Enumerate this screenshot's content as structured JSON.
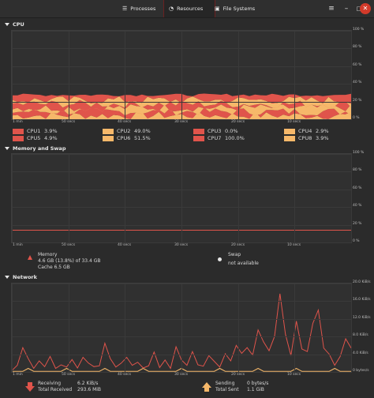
{
  "header": {
    "tabs": [
      {
        "label": "Processes"
      },
      {
        "label": "Resources"
      },
      {
        "label": "File Systems"
      }
    ],
    "active_tab": "Resources"
  },
  "cpu": {
    "title": "CPU",
    "yticks": [
      "100 %",
      "80 %",
      "60 %",
      "40 %",
      "20 %",
      "0 %"
    ],
    "xticks": [
      "1 min",
      "50 secs",
      "40 secs",
      "30 secs",
      "20 secs",
      "10 secs"
    ],
    "legend": [
      {
        "name": "CPU1",
        "value": "3.9%",
        "color": "#e0544b"
      },
      {
        "name": "CPU2",
        "value": "49.0%",
        "color": "#f6b86a"
      },
      {
        "name": "CPU3",
        "value": "0.0%",
        "color": "#e0544b"
      },
      {
        "name": "CPU4",
        "value": "2.9%",
        "color": "#f6b86a"
      },
      {
        "name": "CPU5",
        "value": "4.9%",
        "color": "#e0544b"
      },
      {
        "name": "CPU6",
        "value": "51.5%",
        "color": "#f6b86a"
      },
      {
        "name": "CPU7",
        "value": "100.0%",
        "color": "#e0544b"
      },
      {
        "name": "CPU8",
        "value": "3.9%",
        "color": "#f6b86a"
      }
    ]
  },
  "memory": {
    "title": "Memory and Swap",
    "yticks": [
      "100 %",
      "80 %",
      "60 %",
      "40 %",
      "20 %",
      "0 %"
    ],
    "xticks": [
      "1 min",
      "50 secs",
      "40 secs",
      "30 secs",
      "20 secs",
      "10 secs"
    ],
    "mem_label": "Memory",
    "mem_value": "4.6 GB (13.8%) of 33.4 GB",
    "mem_cache": "Cache 6.5 GB",
    "swap_label": "Swap",
    "swap_value": "not available",
    "mem_percent": 13.8,
    "color": "#e0544b"
  },
  "network": {
    "title": "Network",
    "yticks": [
      "20.0 KiB/s",
      "16.0 KiB/s",
      "12.0 KiB/s",
      "8.0 KiB/s",
      "4.0 KiB/s",
      "0 bytes/s"
    ],
    "xticks": [
      "1 min",
      "50 secs",
      "40 secs",
      "30 secs",
      "20 secs",
      "10 secs"
    ],
    "receiving_label": "Receiving",
    "receiving_value": "6.2 KiB/s",
    "total_received_label": "Total Received",
    "total_received_value": "293.6 MiB",
    "sending_label": "Sending",
    "sending_value": "0 bytes/s",
    "total_sent_label": "Total Sent",
    "total_sent_value": "1.1 GiB",
    "recv_color": "#e0544b",
    "send_color": "#f6b86a"
  }
}
